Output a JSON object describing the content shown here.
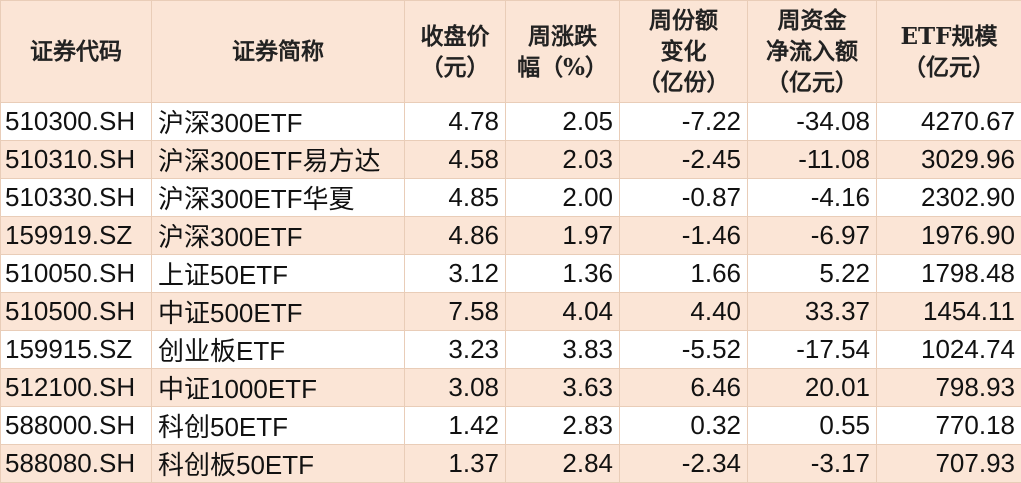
{
  "colors": {
    "header_bg": "#fbe5d6",
    "stripe_bg": "#fbe5d6",
    "border": "#e9cdb8"
  },
  "headers": [
    [
      "证券代码"
    ],
    [
      "证券简称"
    ],
    [
      "收盘价",
      "（元）"
    ],
    [
      "周涨跌",
      "幅（%）"
    ],
    [
      "周份额",
      "变化",
      "（亿份）"
    ],
    [
      "周资金",
      "净流入额",
      "（亿元）"
    ],
    [
      "ETF规模",
      "（亿元）"
    ]
  ],
  "rows": [
    [
      "510300.SH",
      "沪深300ETF",
      "4.78",
      "2.05",
      "-7.22",
      "-34.08",
      "4270.67"
    ],
    [
      "510310.SH",
      "沪深300ETF易方达",
      "4.58",
      "2.03",
      "-2.45",
      "-11.08",
      "3029.96"
    ],
    [
      "510330.SH",
      "沪深300ETF华夏",
      "4.85",
      "2.00",
      "-0.87",
      "-4.16",
      "2302.90"
    ],
    [
      "159919.SZ",
      "沪深300ETF",
      "4.86",
      "1.97",
      "-1.46",
      "-6.97",
      "1976.90"
    ],
    [
      "510050.SH",
      "上证50ETF",
      "3.12",
      "1.36",
      "1.66",
      "5.22",
      "1798.48"
    ],
    [
      "510500.SH",
      "中证500ETF",
      "7.58",
      "4.04",
      "4.40",
      "33.37",
      "1454.11"
    ],
    [
      "159915.SZ",
      "创业板ETF",
      "3.23",
      "3.83",
      "-5.52",
      "-17.54",
      "1024.74"
    ],
    [
      "512100.SH",
      "中证1000ETF",
      "3.08",
      "3.63",
      "6.46",
      "20.01",
      "798.93"
    ],
    [
      "588000.SH",
      "科创50ETF",
      "1.42",
      "2.83",
      "0.32",
      "0.55",
      "770.18"
    ],
    [
      "588080.SH",
      "科创板50ETF",
      "1.37",
      "2.84",
      "-2.34",
      "-3.17",
      "707.93"
    ]
  ]
}
